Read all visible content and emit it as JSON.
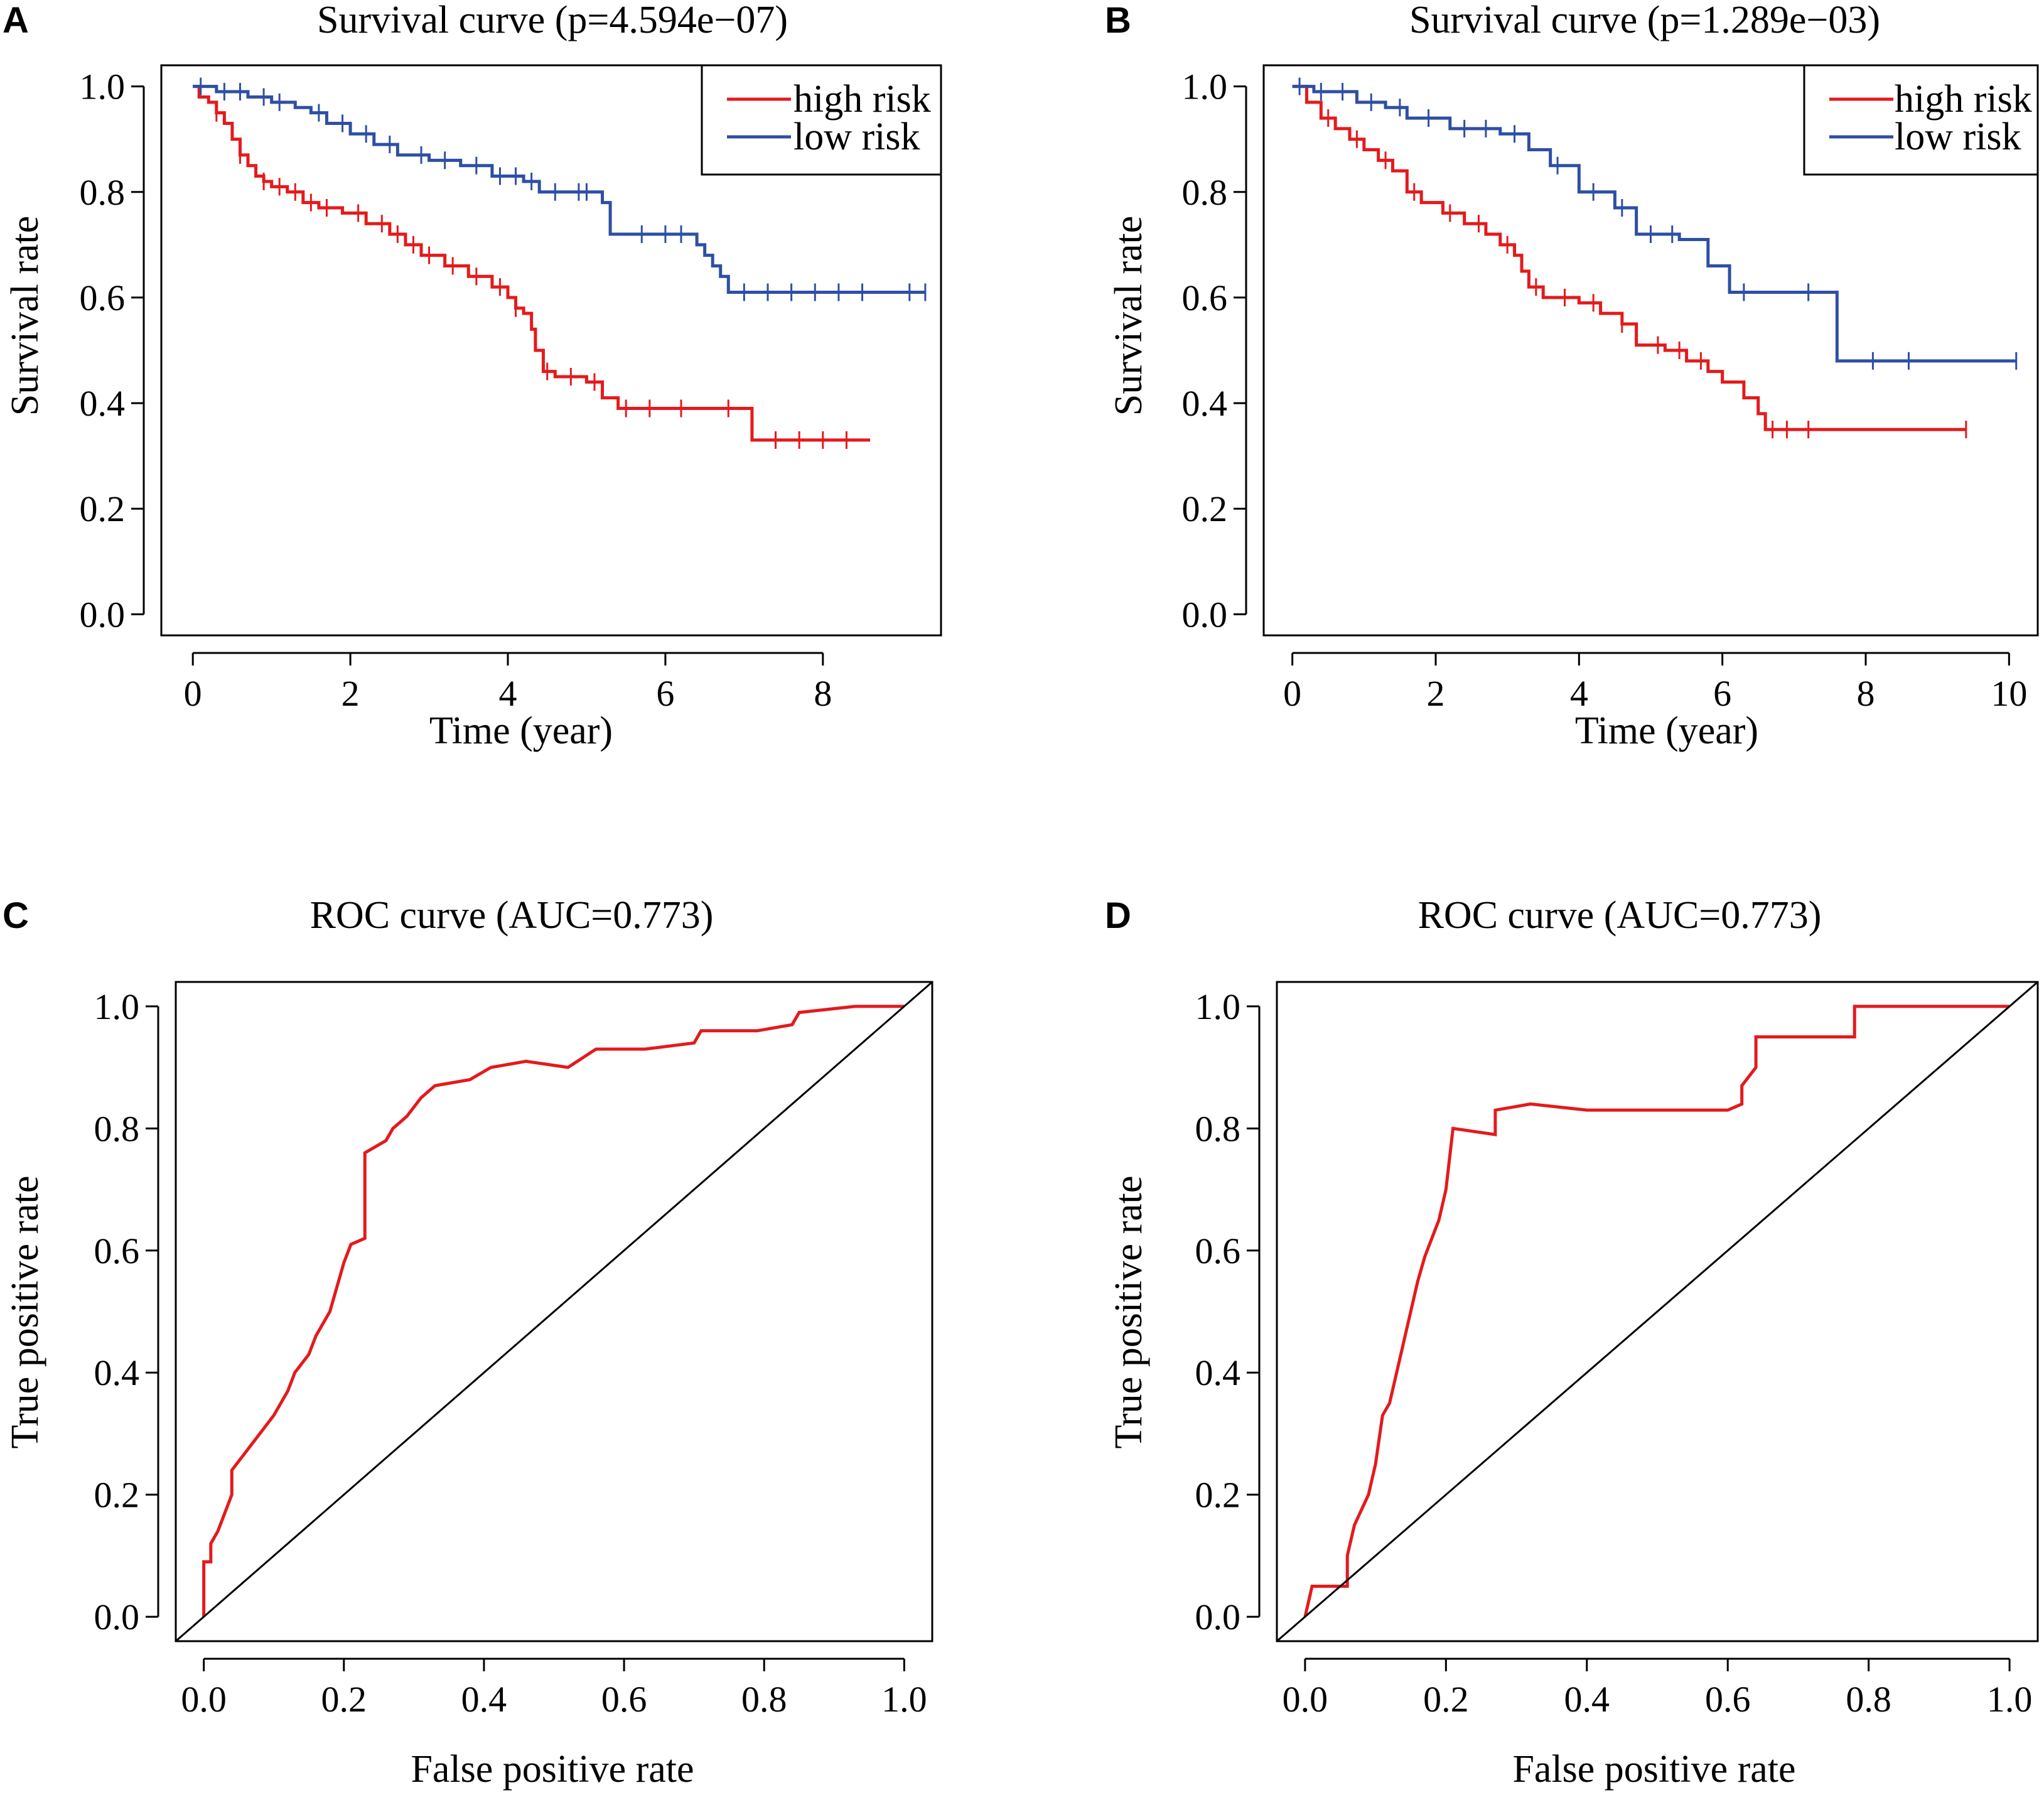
{
  "colors": {
    "high_risk": "#E41A1C",
    "low_risk": "#2E4FA3",
    "diagonal": "#000000"
  },
  "chart_data": [
    {
      "panel": "A",
      "type": "line",
      "title": "Survival curve (p=4.594e−07)",
      "xlabel": "Time (year)",
      "ylabel": "Survival rate",
      "xlim": [
        -0.4,
        9.5
      ],
      "ylim": [
        -0.04,
        1.04
      ],
      "xticks": [
        0,
        2,
        4,
        6,
        8
      ],
      "xtick_labels": [
        "0",
        "2",
        "4",
        "6",
        "8"
      ],
      "yticks": [
        0.0,
        0.2,
        0.4,
        0.6,
        0.8,
        1.0
      ],
      "ytick_labels": [
        "0.0",
        "0.2",
        "0.4",
        "0.6",
        "0.8",
        "1.0"
      ],
      "legend": [
        "high risk",
        "low risk"
      ],
      "series": [
        {
          "name": "high risk",
          "step": [
            [
              0,
              1.0
            ],
            [
              0.08,
              0.98
            ],
            [
              0.2,
              0.97
            ],
            [
              0.3,
              0.95
            ],
            [
              0.4,
              0.93
            ],
            [
              0.5,
              0.9
            ],
            [
              0.6,
              0.87
            ],
            [
              0.7,
              0.85
            ],
            [
              0.8,
              0.83
            ],
            [
              0.9,
              0.82
            ],
            [
              1.0,
              0.81
            ],
            [
              1.2,
              0.8
            ],
            [
              1.4,
              0.78
            ],
            [
              1.6,
              0.77
            ],
            [
              1.9,
              0.76
            ],
            [
              2.2,
              0.74
            ],
            [
              2.5,
              0.72
            ],
            [
              2.7,
              0.7
            ],
            [
              2.9,
              0.68
            ],
            [
              3.2,
              0.66
            ],
            [
              3.5,
              0.64
            ],
            [
              3.8,
              0.62
            ],
            [
              4.0,
              0.6
            ],
            [
              4.1,
              0.58
            ],
            [
              4.2,
              0.57
            ],
            [
              4.3,
              0.54
            ],
            [
              4.35,
              0.5
            ],
            [
              4.45,
              0.46
            ],
            [
              4.6,
              0.45
            ],
            [
              5.0,
              0.44
            ],
            [
              5.2,
              0.41
            ],
            [
              5.4,
              0.39
            ],
            [
              7.1,
              0.33
            ],
            [
              8.6,
              0.33
            ]
          ],
          "censor_times": [
            0.3,
            0.6,
            0.9,
            1.1,
            1.3,
            1.5,
            1.7,
            2.1,
            2.4,
            2.6,
            2.8,
            3.0,
            3.3,
            3.6,
            3.9,
            4.1,
            4.5,
            4.8,
            5.1,
            5.5,
            5.8,
            6.2,
            6.8,
            7.4,
            7.7,
            8.0,
            8.3
          ]
        },
        {
          "name": "low risk",
          "step": [
            [
              0,
              1.0
            ],
            [
              0.3,
              0.99
            ],
            [
              0.7,
              0.98
            ],
            [
              1.0,
              0.97
            ],
            [
              1.3,
              0.96
            ],
            [
              1.5,
              0.95
            ],
            [
              1.7,
              0.93
            ],
            [
              2.0,
              0.91
            ],
            [
              2.3,
              0.89
            ],
            [
              2.6,
              0.87
            ],
            [
              3.0,
              0.86
            ],
            [
              3.4,
              0.85
            ],
            [
              3.8,
              0.83
            ],
            [
              4.2,
              0.82
            ],
            [
              4.4,
              0.8
            ],
            [
              5.2,
              0.78
            ],
            [
              5.3,
              0.72
            ],
            [
              6.4,
              0.7
            ],
            [
              6.5,
              0.68
            ],
            [
              6.6,
              0.66
            ],
            [
              6.7,
              0.64
            ],
            [
              6.8,
              0.61
            ],
            [
              9.3,
              0.61
            ]
          ],
          "censor_times": [
            0.1,
            0.4,
            0.6,
            0.9,
            1.1,
            1.6,
            1.9,
            2.2,
            2.5,
            2.9,
            3.2,
            3.6,
            3.9,
            4.1,
            4.3,
            4.6,
            4.9,
            5.0,
            5.7,
            6.0,
            6.2,
            7.0,
            7.3,
            7.6,
            7.9,
            8.2,
            8.5,
            9.1,
            9.3
          ]
        }
      ]
    },
    {
      "panel": "B",
      "type": "line",
      "title": "Survival curve (p=1.289e−03)",
      "xlabel": "Time (year)",
      "ylabel": "Survival rate",
      "xlim": [
        -0.4,
        10.4
      ],
      "ylim": [
        -0.04,
        1.04
      ],
      "xticks": [
        0,
        2,
        4,
        6,
        8,
        10
      ],
      "xtick_labels": [
        "0",
        "2",
        "4",
        "6",
        "8",
        "10"
      ],
      "yticks": [
        0.0,
        0.2,
        0.4,
        0.6,
        0.8,
        1.0
      ],
      "ytick_labels": [
        "0.0",
        "0.2",
        "0.4",
        "0.6",
        "0.8",
        "1.0"
      ],
      "legend": [
        "high risk",
        "low risk"
      ],
      "series": [
        {
          "name": "high risk",
          "step": [
            [
              0,
              1.0
            ],
            [
              0.2,
              0.97
            ],
            [
              0.4,
              0.94
            ],
            [
              0.6,
              0.92
            ],
            [
              0.8,
              0.9
            ],
            [
              1.0,
              0.88
            ],
            [
              1.2,
              0.86
            ],
            [
              1.4,
              0.84
            ],
            [
              1.6,
              0.8
            ],
            [
              1.8,
              0.78
            ],
            [
              2.1,
              0.76
            ],
            [
              2.4,
              0.74
            ],
            [
              2.7,
              0.72
            ],
            [
              2.9,
              0.7
            ],
            [
              3.1,
              0.68
            ],
            [
              3.2,
              0.65
            ],
            [
              3.3,
              0.62
            ],
            [
              3.5,
              0.6
            ],
            [
              4.0,
              0.59
            ],
            [
              4.3,
              0.57
            ],
            [
              4.6,
              0.55
            ],
            [
              4.8,
              0.51
            ],
            [
              5.2,
              0.5
            ],
            [
              5.5,
              0.48
            ],
            [
              5.8,
              0.46
            ],
            [
              6.0,
              0.44
            ],
            [
              6.3,
              0.41
            ],
            [
              6.5,
              0.38
            ],
            [
              6.6,
              0.35
            ],
            [
              9.4,
              0.35
            ]
          ],
          "censor_times": [
            0.5,
            0.9,
            1.3,
            1.7,
            2.2,
            2.6,
            3.0,
            3.4,
            3.8,
            4.2,
            4.6,
            5.1,
            5.4,
            5.7,
            6.7,
            6.9,
            7.2,
            9.4
          ]
        },
        {
          "name": "low risk",
          "step": [
            [
              0,
              1.0
            ],
            [
              0.3,
              0.99
            ],
            [
              0.9,
              0.97
            ],
            [
              1.3,
              0.96
            ],
            [
              1.6,
              0.94
            ],
            [
              2.2,
              0.92
            ],
            [
              2.9,
              0.91
            ],
            [
              3.3,
              0.88
            ],
            [
              3.6,
              0.85
            ],
            [
              4.0,
              0.8
            ],
            [
              4.5,
              0.77
            ],
            [
              4.8,
              0.72
            ],
            [
              5.4,
              0.71
            ],
            [
              5.8,
              0.66
            ],
            [
              6.1,
              0.61
            ],
            [
              7.6,
              0.48
            ],
            [
              10.1,
              0.48
            ]
          ],
          "censor_times": [
            0.1,
            0.4,
            0.7,
            1.1,
            1.5,
            1.9,
            2.4,
            2.7,
            3.1,
            3.7,
            4.2,
            4.6,
            5.0,
            5.3,
            6.3,
            7.2,
            8.1,
            8.6,
            10.1
          ]
        }
      ]
    },
    {
      "panel": "C",
      "type": "line",
      "title": "ROC curve (AUC=0.773)",
      "xlabel": "False positive rate",
      "ylabel": "True positive rate",
      "xlim": [
        -0.04,
        1.04
      ],
      "ylim": [
        -0.04,
        1.04
      ],
      "xticks": [
        0.0,
        0.2,
        0.4,
        0.6,
        0.8,
        1.0
      ],
      "xtick_labels": [
        "0.0",
        "0.2",
        "0.4",
        "0.6",
        "0.8",
        "1.0"
      ],
      "yticks": [
        0.0,
        0.2,
        0.4,
        0.6,
        0.8,
        1.0
      ],
      "ytick_labels": [
        "0.0",
        "0.2",
        "0.4",
        "0.6",
        "0.8",
        "1.0"
      ],
      "series": [
        {
          "name": "ROC",
          "points": [
            [
              0,
              0
            ],
            [
              0,
              0.09
            ],
            [
              0.01,
              0.09
            ],
            [
              0.01,
              0.12
            ],
            [
              0.02,
              0.14
            ],
            [
              0.03,
              0.17
            ],
            [
              0.04,
              0.2
            ],
            [
              0.04,
              0.24
            ],
            [
              0.06,
              0.27
            ],
            [
              0.08,
              0.3
            ],
            [
              0.1,
              0.33
            ],
            [
              0.12,
              0.37
            ],
            [
              0.13,
              0.4
            ],
            [
              0.15,
              0.43
            ],
            [
              0.16,
              0.46
            ],
            [
              0.18,
              0.5
            ],
            [
              0.19,
              0.54
            ],
            [
              0.2,
              0.58
            ],
            [
              0.21,
              0.61
            ],
            [
              0.23,
              0.62
            ],
            [
              0.23,
              0.76
            ],
            [
              0.26,
              0.78
            ],
            [
              0.27,
              0.8
            ],
            [
              0.29,
              0.82
            ],
            [
              0.31,
              0.85
            ],
            [
              0.33,
              0.87
            ],
            [
              0.38,
              0.88
            ],
            [
              0.41,
              0.9
            ],
            [
              0.46,
              0.91
            ],
            [
              0.52,
              0.9
            ],
            [
              0.56,
              0.93
            ],
            [
              0.63,
              0.93
            ],
            [
              0.7,
              0.94
            ],
            [
              0.71,
              0.96
            ],
            [
              0.79,
              0.96
            ],
            [
              0.84,
              0.97
            ],
            [
              0.85,
              0.99
            ],
            [
              0.93,
              1.0
            ],
            [
              1.0,
              1.0
            ]
          ]
        },
        {
          "name": "diagonal",
          "points": [
            [
              -0.04,
              -0.04
            ],
            [
              1.04,
              1.04
            ]
          ]
        }
      ]
    },
    {
      "panel": "D",
      "type": "line",
      "title": "ROC curve (AUC=0.773)",
      "xlabel": "False positive rate",
      "ylabel": "True positive rate",
      "xlim": [
        -0.04,
        1.04
      ],
      "ylim": [
        -0.04,
        1.04
      ],
      "xticks": [
        0.0,
        0.2,
        0.4,
        0.6,
        0.8,
        1.0
      ],
      "xtick_labels": [
        "0.0",
        "0.2",
        "0.4",
        "0.6",
        "0.8",
        "1.0"
      ],
      "yticks": [
        0.0,
        0.2,
        0.4,
        0.6,
        0.8,
        1.0
      ],
      "ytick_labels": [
        "0.0",
        "0.2",
        "0.4",
        "0.6",
        "0.8",
        "1.0"
      ],
      "series": [
        {
          "name": "ROC",
          "points": [
            [
              0,
              0
            ],
            [
              0.01,
              0.05
            ],
            [
              0.06,
              0.05
            ],
            [
              0.06,
              0.1
            ],
            [
              0.07,
              0.15
            ],
            [
              0.09,
              0.2
            ],
            [
              0.1,
              0.25
            ],
            [
              0.11,
              0.33
            ],
            [
              0.12,
              0.35
            ],
            [
              0.13,
              0.4
            ],
            [
              0.14,
              0.45
            ],
            [
              0.15,
              0.5
            ],
            [
              0.16,
              0.55
            ],
            [
              0.17,
              0.59
            ],
            [
              0.18,
              0.62
            ],
            [
              0.19,
              0.65
            ],
            [
              0.2,
              0.7
            ],
            [
              0.21,
              0.8
            ],
            [
              0.27,
              0.79
            ],
            [
              0.27,
              0.83
            ],
            [
              0.32,
              0.84
            ],
            [
              0.4,
              0.83
            ],
            [
              0.5,
              0.83
            ],
            [
              0.6,
              0.83
            ],
            [
              0.62,
              0.84
            ],
            [
              0.62,
              0.87
            ],
            [
              0.64,
              0.9
            ],
            [
              0.64,
              0.95
            ],
            [
              0.68,
              0.95
            ],
            [
              0.78,
              0.95
            ],
            [
              0.78,
              1.0
            ],
            [
              0.85,
              1.0
            ],
            [
              0.92,
              1.0
            ],
            [
              1.0,
              1.0
            ]
          ]
        },
        {
          "name": "diagonal",
          "points": [
            [
              -0.04,
              -0.04
            ],
            [
              1.04,
              1.04
            ]
          ]
        }
      ]
    }
  ]
}
